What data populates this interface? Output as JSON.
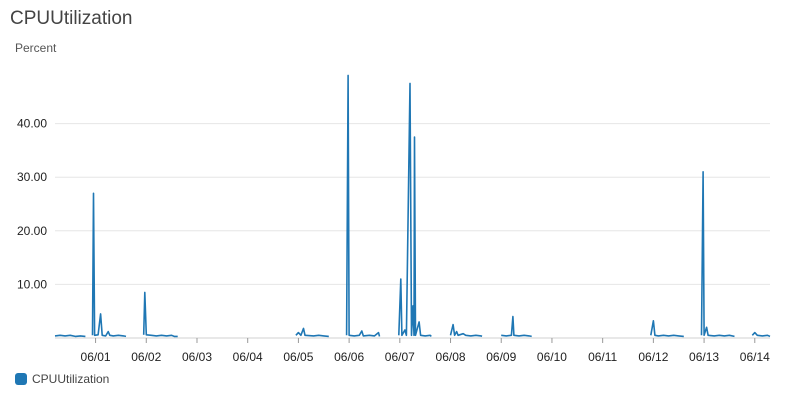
{
  "chart_data": {
    "type": "line",
    "title": "CPUUtilization",
    "ylabel": "Percent",
    "ylim": [
      0,
      50
    ],
    "yticks": [
      "10.00",
      "20.00",
      "30.00",
      "40.00"
    ],
    "yticks_values": [
      10,
      20,
      30,
      40
    ],
    "xlim": [
      -0.8,
      13.3
    ],
    "xticks": [
      "06/01",
      "06/02",
      "06/03",
      "06/04",
      "06/05",
      "06/06",
      "06/07",
      "06/08",
      "06/09",
      "06/10",
      "06/11",
      "06/12",
      "06/13",
      "06/14"
    ],
    "xticks_values": [
      0,
      1,
      2,
      3,
      4,
      5,
      6,
      7,
      8,
      9,
      10,
      11,
      12,
      13
    ],
    "grid": true,
    "legend_position": "bottom-left",
    "colors": {
      "series": "#1f77b4"
    },
    "series": [
      {
        "name": "CPUUtilization",
        "segments": [
          [
            [
              -0.8,
              0.4
            ],
            [
              -0.7,
              0.5
            ],
            [
              -0.6,
              0.4
            ],
            [
              -0.5,
              0.5
            ],
            [
              -0.4,
              0.3
            ],
            [
              -0.3,
              0.4
            ],
            [
              -0.2,
              0.3
            ]
          ],
          [
            [
              -0.06,
              0.5
            ],
            [
              -0.04,
              27
            ],
            [
              -0.02,
              0.5
            ],
            [
              0.05,
              0.6
            ],
            [
              0.1,
              4.5
            ],
            [
              0.13,
              0.5
            ],
            [
              0.2,
              0.4
            ],
            [
              0.25,
              1.2
            ],
            [
              0.28,
              0.5
            ],
            [
              0.35,
              0.4
            ],
            [
              0.45,
              0.5
            ],
            [
              0.55,
              0.4
            ],
            [
              0.6,
              0.3
            ]
          ],
          [
            [
              0.95,
              0.6
            ],
            [
              0.97,
              8.5
            ],
            [
              1.0,
              0.6
            ],
            [
              1.1,
              0.5
            ],
            [
              1.2,
              0.4
            ],
            [
              1.3,
              0.5
            ],
            [
              1.4,
              0.4
            ],
            [
              1.5,
              0.5
            ],
            [
              1.55,
              0.3
            ],
            [
              1.62,
              0.3
            ]
          ],
          [
            [
              3.95,
              0.5
            ],
            [
              4.0,
              1.0
            ],
            [
              4.05,
              0.5
            ],
            [
              4.1,
              1.8
            ],
            [
              4.13,
              0.5
            ],
            [
              4.3,
              0.4
            ],
            [
              4.4,
              0.5
            ],
            [
              4.5,
              0.4
            ],
            [
              4.6,
              0.3
            ]
          ],
          [
            [
              4.95,
              0.5
            ],
            [
              4.98,
              49
            ],
            [
              5.0,
              0.5
            ],
            [
              5.1,
              0.4
            ],
            [
              5.2,
              0.5
            ],
            [
              5.25,
              1.3
            ],
            [
              5.28,
              0.4
            ],
            [
              5.4,
              0.5
            ],
            [
              5.5,
              0.4
            ],
            [
              5.58,
              1.0
            ],
            [
              5.6,
              0.3
            ]
          ],
          [
            [
              5.98,
              0.5
            ],
            [
              6.02,
              11
            ],
            [
              6.04,
              0.5
            ],
            [
              6.1,
              1.5
            ],
            [
              6.13,
              0.5
            ],
            [
              6.2,
              47.5
            ],
            [
              6.23,
              0.5
            ],
            [
              6.26,
              6
            ],
            [
              6.28,
              0.5
            ],
            [
              6.29,
              37.5
            ],
            [
              6.31,
              0.5
            ],
            [
              6.38,
              3
            ],
            [
              6.41,
              0.5
            ],
            [
              6.5,
              0.4
            ],
            [
              6.6,
              0.5
            ],
            [
              6.62,
              0.3
            ]
          ],
          [
            [
              7.0,
              0.5
            ],
            [
              7.05,
              2.5
            ],
            [
              7.08,
              0.5
            ],
            [
              7.12,
              1.2
            ],
            [
              7.15,
              0.5
            ],
            [
              7.25,
              0.8
            ],
            [
              7.3,
              0.5
            ],
            [
              7.4,
              0.4
            ],
            [
              7.5,
              0.5
            ],
            [
              7.6,
              0.4
            ],
            [
              7.62,
              0.3
            ]
          ],
          [
            [
              8.0,
              0.5
            ],
            [
              8.1,
              0.4
            ],
            [
              8.2,
              0.5
            ],
            [
              8.23,
              4.0
            ],
            [
              8.25,
              0.5
            ],
            [
              8.35,
              0.4
            ],
            [
              8.45,
              0.5
            ],
            [
              8.55,
              0.4
            ],
            [
              8.6,
              0.3
            ]
          ],
          [
            [
              10.95,
              0.5
            ],
            [
              11.0,
              3.2
            ],
            [
              11.03,
              0.5
            ],
            [
              11.1,
              0.4
            ],
            [
              11.2,
              0.5
            ],
            [
              11.3,
              0.4
            ],
            [
              11.4,
              0.5
            ],
            [
              11.5,
              0.4
            ],
            [
              11.6,
              0.3
            ]
          ],
          [
            [
              11.95,
              0.5
            ],
            [
              11.98,
              31
            ],
            [
              12.0,
              0.5
            ],
            [
              12.05,
              2.0
            ],
            [
              12.08,
              0.5
            ],
            [
              12.2,
              0.4
            ],
            [
              12.3,
              0.5
            ],
            [
              12.4,
              0.4
            ],
            [
              12.5,
              0.5
            ],
            [
              12.6,
              0.3
            ]
          ],
          [
            [
              12.95,
              0.5
            ],
            [
              13.0,
              1.0
            ],
            [
              13.05,
              0.5
            ],
            [
              13.15,
              0.4
            ],
            [
              13.25,
              0.5
            ],
            [
              13.3,
              0.3
            ]
          ]
        ]
      }
    ]
  }
}
